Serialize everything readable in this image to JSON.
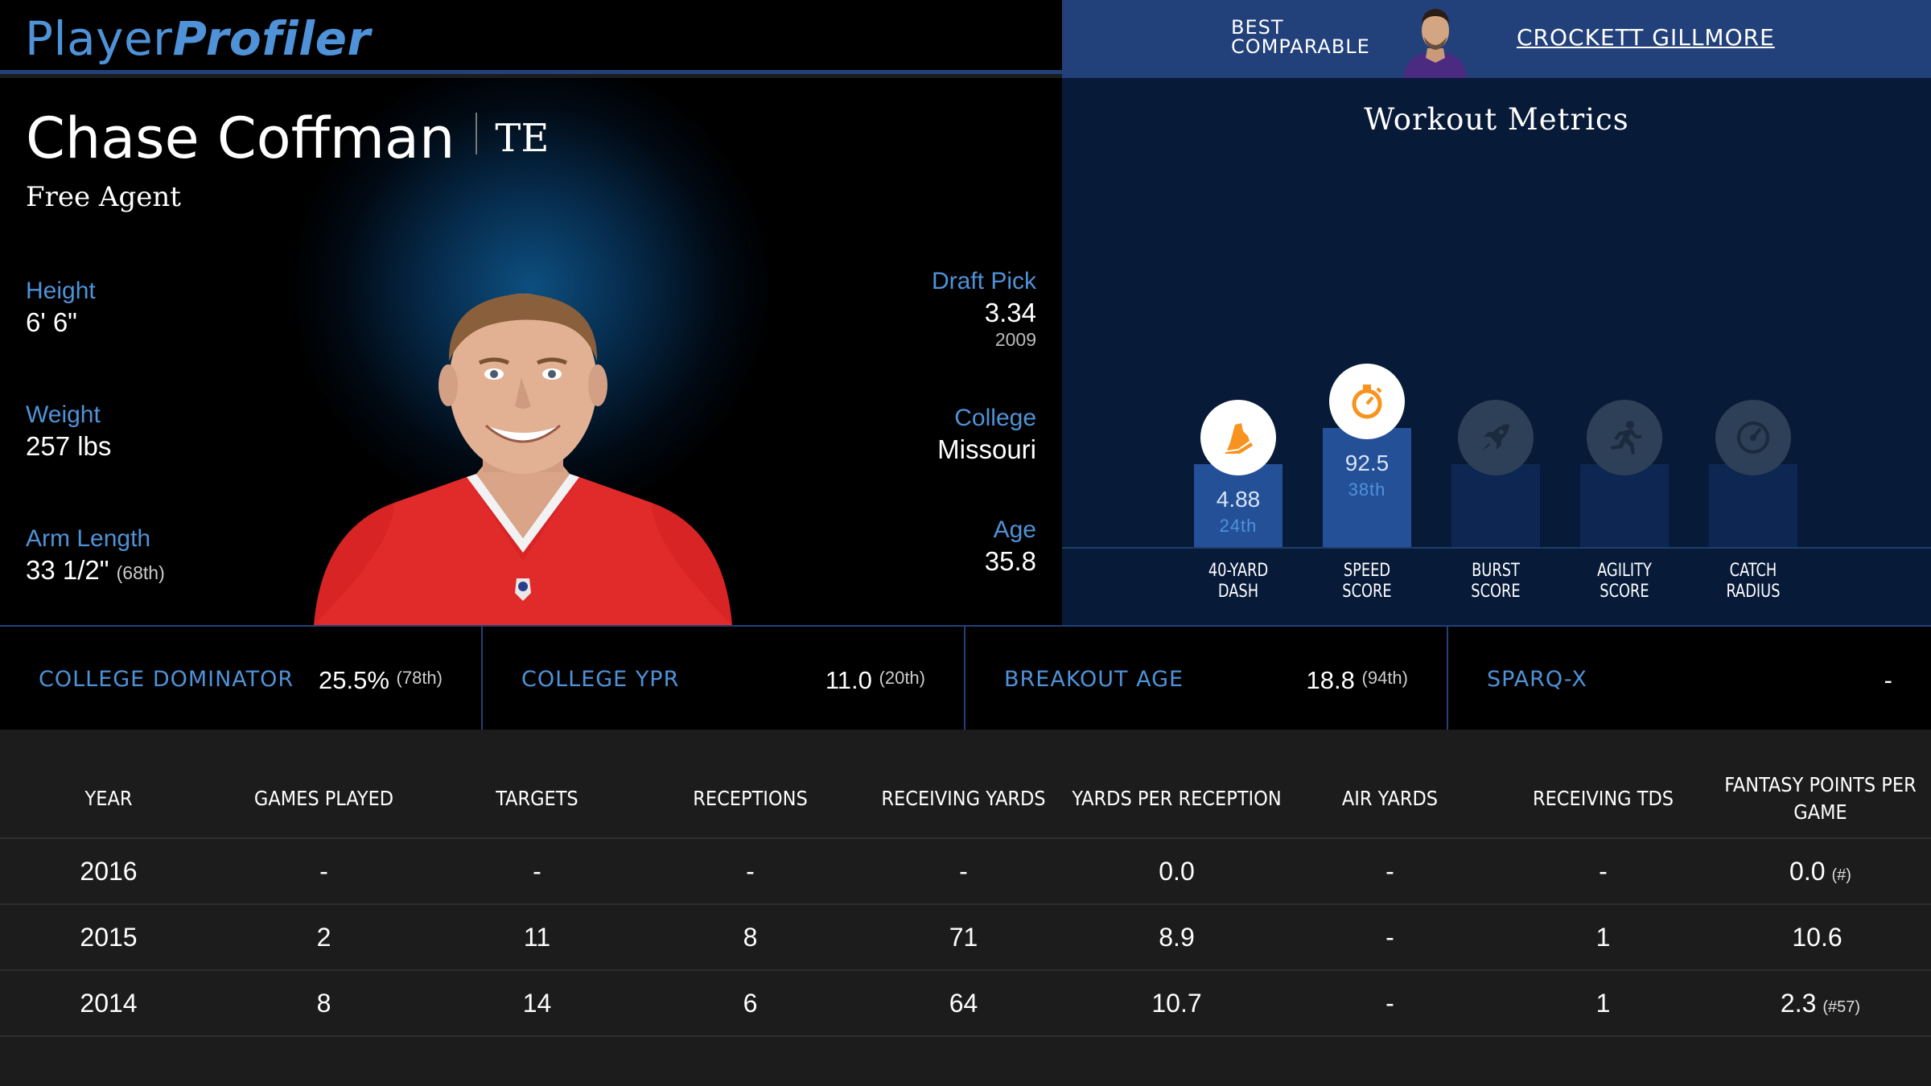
{
  "header": {
    "logo_part1": "Player",
    "logo_part2": "Profiler",
    "best_comparable_label": "BEST\nCOMPARABLE",
    "best_comparable_name": "CROCKETT GILLMORE"
  },
  "player": {
    "name": "Chase Coffman",
    "position": "TE",
    "team": "Free Agent",
    "height_label": "Height",
    "height": "6' 6\"",
    "weight_label": "Weight",
    "weight": "257 lbs",
    "arm_label": "Arm Length",
    "arm_length": "33 1/2\"",
    "arm_rank": "(68th)",
    "draft_label": "Draft Pick",
    "draft_pick": "3.34",
    "draft_year": "2009",
    "college_label": "College",
    "college": "Missouri",
    "age_label": "Age",
    "age": "35.8"
  },
  "workout": {
    "title": "Workout Metrics",
    "metrics": [
      {
        "label": "40-YARD\nDASH",
        "value": "4.88",
        "percentile": "24th",
        "percentile_num": 24,
        "icon": "running-shoe-icon"
      },
      {
        "label": "SPEED\nSCORE",
        "value": "92.5",
        "percentile": "38th",
        "percentile_num": 38,
        "icon": "stopwatch-icon"
      },
      {
        "label": "BURST\nSCORE",
        "value": "",
        "percentile": "",
        "percentile_num": null,
        "icon": "rocket-icon"
      },
      {
        "label": "AGILITY\nSCORE",
        "value": "",
        "percentile": "",
        "percentile_num": null,
        "icon": "runner-icon"
      },
      {
        "label": "CATCH\nRADIUS",
        "value": "",
        "percentile": "",
        "percentile_num": null,
        "icon": "gauge-icon"
      }
    ],
    "colors": {
      "active_icon": "#f7931e",
      "inactive_icon": "#1b2a3d"
    }
  },
  "college_stats": [
    {
      "label": "COLLEGE DOMINATOR",
      "value": "25.5%",
      "rank": "(78th)"
    },
    {
      "label": "COLLEGE YPR",
      "value": "11.0",
      "rank": "(20th)"
    },
    {
      "label": "BREAKOUT AGE",
      "value": "18.8",
      "rank": "(94th)"
    },
    {
      "label": "SPARQ-X",
      "value": "-",
      "rank": ""
    }
  ],
  "stats_table": {
    "headers": [
      "YEAR",
      "GAMES PLAYED",
      "TARGETS",
      "RECEPTIONS",
      "RECEIVING YARDS",
      "YARDS PER RECEPTION",
      "AIR YARDS",
      "RECEIVING TDS",
      "FANTASY POINTS PER GAME"
    ],
    "rows": [
      {
        "cells": [
          "2016",
          "-",
          "-",
          "-",
          "-",
          "0.0",
          "-",
          "-",
          "0.0"
        ],
        "rank": "(#)"
      },
      {
        "cells": [
          "2015",
          "2",
          "11",
          "8",
          "71",
          "8.9",
          "-",
          "1",
          "10.6"
        ],
        "rank": ""
      },
      {
        "cells": [
          "2014",
          "8",
          "14",
          "6",
          "64",
          "10.7",
          "-",
          "1",
          "2.3"
        ],
        "rank": "(#57)"
      }
    ]
  }
}
